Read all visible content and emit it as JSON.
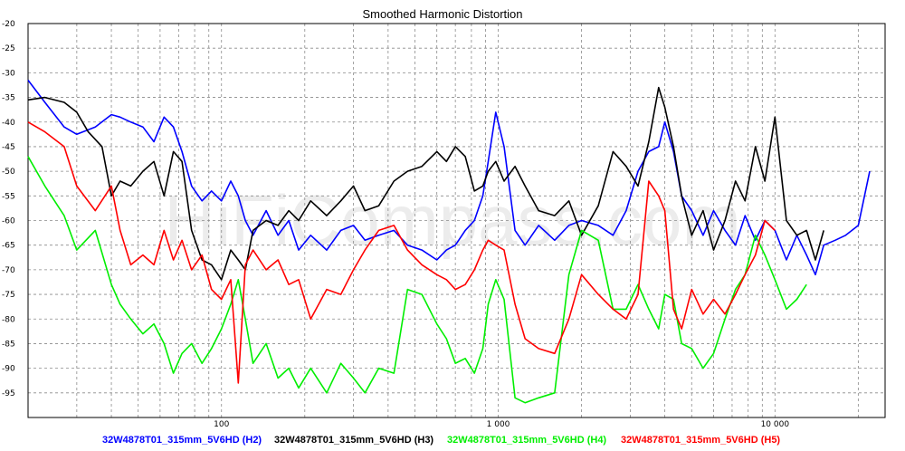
{
  "chart_data": {
    "type": "line",
    "title": "Smoothed Harmonic Distortion",
    "xlabel": "",
    "ylabel": "",
    "x_scale": "log",
    "xlim": [
      20,
      25000
    ],
    "ylim": [
      -100,
      -20
    ],
    "grid": true,
    "legend_position": "bottom",
    "watermark": "HiFiCompass.com",
    "y_ticks": [
      -20,
      -25,
      -30,
      -35,
      -40,
      -45,
      -50,
      -55,
      -60,
      -65,
      -70,
      -75,
      -80,
      -85,
      -90,
      -95
    ],
    "x_tick_labels": [
      {
        "x": 100,
        "label": "100"
      },
      {
        "x": 1000,
        "label": "1 000"
      },
      {
        "x": 10000,
        "label": "10 000"
      }
    ],
    "series": [
      {
        "name": "32W4878T01_315mm_5V6HD (H2)",
        "color": "#0000ff",
        "x": [
          20,
          23,
          27,
          30,
          35,
          40,
          43,
          47,
          52,
          57,
          62,
          67,
          72,
          78,
          85,
          92,
          100,
          108,
          115,
          122,
          130,
          145,
          160,
          175,
          190,
          210,
          240,
          270,
          300,
          330,
          370,
          420,
          470,
          530,
          600,
          650,
          700,
          760,
          820,
          880,
          920,
          980,
          1050,
          1150,
          1250,
          1400,
          1600,
          1800,
          2000,
          2300,
          2600,
          2900,
          3200,
          3500,
          3800,
          4000,
          4300,
          4600,
          5000,
          5500,
          6000,
          6600,
          7200,
          7800,
          8500,
          9200,
          10000,
          11000,
          12000,
          13000,
          14000,
          15000,
          16500,
          18000,
          20000,
          22000
        ],
        "y": [
          -31.5,
          -36,
          -41,
          -42.5,
          -41,
          -38.5,
          -39,
          -40,
          -41,
          -44,
          -39,
          -41,
          -46,
          -53,
          -56,
          -54,
          -56,
          -52,
          -55,
          -60,
          -63,
          -58,
          -63,
          -60,
          -66,
          -63,
          -66,
          -62,
          -61,
          -64,
          -63,
          -62,
          -65,
          -66,
          -68,
          -66,
          -65,
          -62,
          -60,
          -55,
          -48,
          -38,
          -45,
          -62,
          -65,
          -61,
          -64,
          -61,
          -60,
          -61,
          -63,
          -58,
          -50,
          -46,
          -45,
          -40,
          -46,
          -55,
          -58,
          -63,
          -58,
          -62,
          -65,
          -59,
          -64,
          -60,
          -62,
          -68,
          -63,
          -67,
          -71,
          -65,
          -64,
          -63,
          -61,
          -50
        ]
      },
      {
        "name": "32W4878T01_315mm_5V6HD (H3)",
        "color": "#000000",
        "x": [
          20,
          23,
          27,
          30,
          33,
          37,
          40,
          43,
          47,
          52,
          57,
          62,
          67,
          72,
          78,
          85,
          92,
          100,
          108,
          115,
          122,
          130,
          145,
          160,
          175,
          190,
          210,
          240,
          270,
          300,
          330,
          370,
          420,
          470,
          530,
          600,
          650,
          700,
          760,
          820,
          880,
          920,
          980,
          1050,
          1150,
          1250,
          1400,
          1600,
          1800,
          2000,
          2300,
          2600,
          2900,
          3200,
          3500,
          3800,
          4000,
          4300,
          4600,
          5000,
          5500,
          6000,
          6600,
          7200,
          7800,
          8500,
          9200,
          10000,
          11000,
          12000,
          13000,
          14000,
          15000
        ],
        "y": [
          -35.5,
          -35,
          -36,
          -38,
          -42,
          -45,
          -55,
          -52,
          -53,
          -50,
          -48,
          -55,
          -46,
          -48,
          -62,
          -68,
          -69,
          -72,
          -66,
          -68,
          -70,
          -62,
          -60,
          -61,
          -58,
          -60,
          -56,
          -59,
          -56,
          -53,
          -58,
          -57,
          -52,
          -50,
          -49,
          -46,
          -48,
          -45,
          -47,
          -54,
          -53,
          -50,
          -48,
          -52,
          -49,
          -53,
          -58,
          -59,
          -56,
          -63,
          -57,
          -46,
          -49,
          -53,
          -44,
          -33,
          -37,
          -45,
          -55,
          -63,
          -58,
          -66,
          -60,
          -52,
          -56,
          -45,
          -52,
          -39,
          -60,
          -63,
          -62,
          -68,
          -62
        ]
      },
      {
        "name": "32W4878T01_315mm_5V6HD (H4)",
        "color": "#00ee00",
        "x": [
          20,
          23,
          27,
          30,
          35,
          40,
          43,
          47,
          52,
          57,
          62,
          67,
          72,
          78,
          85,
          92,
          100,
          108,
          115,
          122,
          130,
          145,
          160,
          175,
          190,
          210,
          240,
          270,
          300,
          330,
          370,
          420,
          470,
          530,
          600,
          650,
          700,
          760,
          820,
          880,
          920,
          980,
          1050,
          1150,
          1250,
          1400,
          1600,
          1800,
          2000,
          2300,
          2600,
          2900,
          3200,
          3500,
          3800,
          4000,
          4300,
          4600,
          5000,
          5500,
          6000,
          6600,
          7200,
          7800,
          8500,
          9200,
          10000,
          11000,
          12000,
          13000
        ],
        "y": [
          -47,
          -53,
          -59,
          -66,
          -62,
          -73,
          -77,
          -80,
          -83,
          -81,
          -85,
          -91,
          -87,
          -85,
          -89,
          -86,
          -82,
          -77,
          -72,
          -80,
          -89,
          -85,
          -92,
          -90,
          -94,
          -90,
          -95,
          -89,
          -92,
          -95,
          -90,
          -91,
          -74,
          -75,
          -81,
          -84,
          -89,
          -88,
          -91,
          -86,
          -77,
          -72,
          -76,
          -96,
          -97,
          -96,
          -95,
          -71,
          -62,
          -64,
          -78,
          -78,
          -73,
          -78,
          -82,
          -75,
          -76,
          -85,
          -86,
          -90,
          -87,
          -80,
          -74,
          -71,
          -63,
          -67,
          -72,
          -78,
          -76,
          -73
        ]
      },
      {
        "name": "32W4878T01_315mm_5V6HD (H5)",
        "color": "#ff0000",
        "x": [
          20,
          23,
          27,
          30,
          35,
          40,
          43,
          47,
          52,
          57,
          62,
          67,
          72,
          78,
          85,
          92,
          100,
          108,
          115,
          122,
          130,
          145,
          160,
          175,
          190,
          210,
          240,
          270,
          300,
          330,
          370,
          420,
          470,
          530,
          600,
          650,
          700,
          760,
          820,
          880,
          920,
          980,
          1050,
          1150,
          1250,
          1400,
          1600,
          1800,
          2000,
          2300,
          2600,
          2900,
          3200,
          3500,
          3800,
          4000,
          4300,
          4600,
          5000,
          5500,
          6000,
          6600,
          7200,
          7800,
          8500,
          9200,
          10000
        ],
        "y": [
          -40,
          -42,
          -45,
          -53,
          -58,
          -53,
          -62,
          -69,
          -67,
          -69,
          -62,
          -68,
          -64,
          -70,
          -67,
          -74,
          -76,
          -72,
          -93,
          -69,
          -66,
          -70,
          -68,
          -73,
          -72,
          -80,
          -74,
          -75,
          -70,
          -66,
          -62,
          -61,
          -66,
          -69,
          -71,
          -72,
          -74,
          -73,
          -70,
          -66,
          -64,
          -65,
          -66,
          -77,
          -84,
          -86,
          -87,
          -80,
          -71,
          -75,
          -78,
          -80,
          -75,
          -52,
          -55,
          -58,
          -78,
          -82,
          -74,
          -79,
          -76,
          -79,
          -75,
          -71,
          -67,
          -60,
          -62
        ]
      }
    ]
  }
}
